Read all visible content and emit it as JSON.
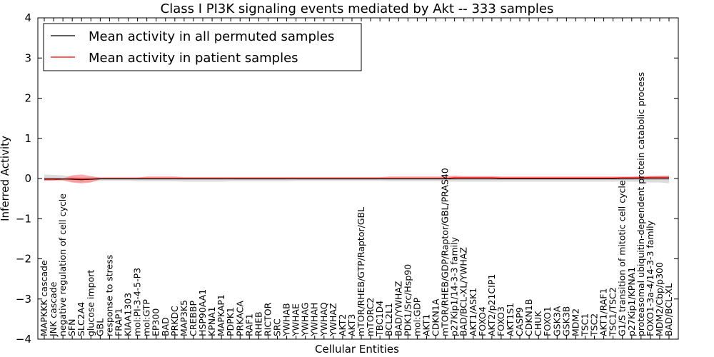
{
  "chart_data": {
    "type": "line",
    "title": "Class I PI3K signaling events mediated by Akt -- 333 samples",
    "xlabel": "Cellular Entities",
    "ylabel": "Inferred Activity",
    "ylim": [
      -4,
      4
    ],
    "yticks": [
      "−4",
      "−3",
      "−2",
      "−1",
      "0",
      "1",
      "2",
      "3",
      "4"
    ],
    "legend_position": "top-left",
    "colors": {
      "permuted": "#000000",
      "patient": "#ff0000",
      "band_permuted": "#bbbbbb",
      "band_patient": "#ff6666"
    },
    "categories": [
      "MAPKKK cascade",
      "JNK cascade",
      "negative regulation of cell cycle",
      "SFN",
      "SLC2A4",
      "glucose import",
      "GBL",
      "response to stress",
      "FRAP1",
      "KIAA1303",
      "mol:PI-3-4-5-P3",
      "mol:GTP",
      "EP300",
      "BAD",
      "PRKDC",
      "MAP3K5",
      "CREBBP",
      "HSP90AA1",
      "KPNA1",
      "MAPKAP1",
      "PDPK1",
      "PRKACA",
      "RAF1",
      "RHEB",
      "RICTOR",
      "SRC",
      "YWHAB",
      "YWHAE",
      "YWHAG",
      "YWHAH",
      "YWHAQ",
      "YWHAZ",
      "AKT2",
      "AKT3",
      "mTOR/RHEB/GTP/Raptor/GBL",
      "mTORC2",
      "TBC1D4",
      "BCL2L1",
      "BAD/YWHAZ",
      "PDK1/Src/Hsp90",
      "mol:GDP",
      "AKT1",
      "CDKN1A",
      "mTOR/RHEB/GDP/Raptor/GBL/PRAS40",
      "p27Kip1/14-3-3 family",
      "BAD/BCL-XL/YWHAZ",
      "AKT1/ASK1",
      "FOXO4",
      "AKT2/p21CIP1",
      "FOXO3",
      "AKT1S1",
      "CASP9",
      "CDKN1B",
      "CHUK",
      "FOXO1",
      "GSK3A",
      "GSK3B",
      "MDM2",
      "TSC1",
      "TSC2",
      "AKT1/RAF1",
      "TSC1/TSC2",
      "G1/S transition of mitotic cell cycle",
      "p27Kip1/KPNA1",
      "proteasomal ubiquitin-dependent protein catabolic process",
      "FOXO1-3a-4/14-3-3 family",
      "MDM2/Cbp/p300",
      "BAD/BCL-XL"
    ],
    "series": [
      {
        "name": "Mean activity in all permuted samples",
        "values": [
          0.0,
          0.0,
          -0.01,
          -0.02,
          -0.03,
          -0.02,
          -0.01,
          -0.01,
          -0.01,
          -0.01,
          -0.01,
          -0.01,
          -0.01,
          -0.01,
          -0.01,
          -0.01,
          -0.01,
          -0.01,
          -0.01,
          -0.01,
          -0.01,
          -0.01,
          -0.01,
          -0.01,
          -0.01,
          -0.01,
          -0.01,
          -0.01,
          -0.01,
          -0.01,
          -0.01,
          -0.01,
          -0.01,
          -0.01,
          -0.01,
          -0.01,
          -0.01,
          -0.01,
          -0.01,
          -0.01,
          -0.01,
          -0.01,
          -0.01,
          -0.01,
          -0.01,
          -0.01,
          -0.01,
          -0.01,
          -0.01,
          -0.01,
          -0.01,
          -0.01,
          -0.01,
          -0.01,
          -0.01,
          -0.01,
          -0.01,
          -0.01,
          -0.01,
          -0.01,
          -0.01,
          -0.01,
          -0.01,
          -0.01,
          -0.01,
          -0.01,
          -0.01,
          -0.01
        ],
        "lower": [
          -0.05,
          -0.04,
          -0.05,
          -0.08,
          -0.1,
          -0.08,
          -0.06,
          -0.06,
          -0.06,
          -0.06,
          -0.07,
          -0.07,
          -0.07,
          -0.07,
          -0.07,
          -0.08,
          -0.08,
          -0.08,
          -0.08,
          -0.08,
          -0.07,
          -0.07,
          -0.07,
          -0.07,
          -0.07,
          -0.07,
          -0.07,
          -0.06,
          -0.06,
          -0.06,
          -0.06,
          -0.06,
          -0.06,
          -0.06,
          -0.06,
          -0.06,
          -0.06,
          -0.07,
          -0.07,
          -0.07,
          -0.07,
          -0.07,
          -0.07,
          -0.07,
          -0.08,
          -0.08,
          -0.08,
          -0.08,
          -0.08,
          -0.08,
          -0.08,
          -0.08,
          -0.08,
          -0.08,
          -0.08,
          -0.08,
          -0.08,
          -0.08,
          -0.08,
          -0.08,
          -0.08,
          -0.08,
          -0.08,
          -0.08,
          -0.09,
          -0.1,
          -0.1,
          -0.12
        ],
        "upper": [
          0.1,
          0.09,
          0.08,
          0.05,
          0.03,
          0.04,
          0.04,
          0.04,
          0.04,
          0.04,
          0.04,
          0.04,
          0.04,
          0.04,
          0.04,
          0.04,
          0.04,
          0.04,
          0.04,
          0.04,
          0.04,
          0.04,
          0.04,
          0.04,
          0.04,
          0.04,
          0.04,
          0.04,
          0.04,
          0.04,
          0.04,
          0.04,
          0.04,
          0.04,
          0.04,
          0.04,
          0.04,
          0.04,
          0.04,
          0.04,
          0.04,
          0.04,
          0.04,
          0.04,
          0.04,
          0.04,
          0.04,
          0.04,
          0.04,
          0.04,
          0.04,
          0.04,
          0.04,
          0.04,
          0.04,
          0.04,
          0.04,
          0.04,
          0.04,
          0.04,
          0.04,
          0.04,
          0.04,
          0.04,
          0.05,
          0.06,
          0.07,
          0.08
        ]
      },
      {
        "name": "Mean activity in patient samples",
        "values": [
          -0.03,
          -0.03,
          -0.02,
          0.0,
          -0.01,
          -0.01,
          0.0,
          0.0,
          0.0,
          0.0,
          0.0,
          0.0,
          0.0,
          0.0,
          0.0,
          0.0,
          0.0,
          0.0,
          0.0,
          0.0,
          0.0,
          0.0,
          0.0,
          0.0,
          0.0,
          0.0,
          0.0,
          0.0,
          0.0,
          0.0,
          0.0,
          0.0,
          0.0,
          0.0,
          0.0,
          0.0,
          0.0,
          0.0,
          0.0,
          0.0,
          0.0,
          0.0,
          0.0,
          0.0,
          0.02,
          0.02,
          0.02,
          0.02,
          0.02,
          0.01,
          0.01,
          0.01,
          0.01,
          0.01,
          0.01,
          0.01,
          0.01,
          0.01,
          0.01,
          0.01,
          0.01,
          0.01,
          0.02,
          0.02,
          0.02,
          0.03,
          0.03,
          0.03
        ],
        "lower": [
          -0.05,
          -0.05,
          -0.05,
          -0.1,
          -0.12,
          -0.1,
          -0.02,
          -0.02,
          -0.02,
          -0.02,
          -0.02,
          -0.02,
          -0.02,
          -0.02,
          -0.02,
          -0.02,
          -0.02,
          -0.02,
          -0.02,
          -0.02,
          -0.02,
          -0.02,
          -0.02,
          -0.02,
          -0.02,
          -0.02,
          -0.02,
          -0.02,
          -0.02,
          -0.02,
          -0.02,
          -0.02,
          -0.02,
          -0.02,
          -0.02,
          -0.02,
          -0.02,
          -0.02,
          -0.02,
          -0.02,
          -0.02,
          -0.02,
          -0.02,
          -0.02,
          -0.01,
          -0.01,
          -0.01,
          -0.01,
          -0.01,
          -0.01,
          -0.01,
          -0.01,
          -0.01,
          -0.01,
          -0.01,
          -0.01,
          -0.01,
          -0.01,
          -0.01,
          -0.01,
          -0.01,
          -0.01,
          -0.01,
          -0.01,
          -0.01,
          -0.01,
          -0.01,
          -0.01
        ],
        "upper": [
          -0.01,
          -0.01,
          0.0,
          0.08,
          0.1,
          0.06,
          0.02,
          0.02,
          0.02,
          0.02,
          0.02,
          0.05,
          0.05,
          0.05,
          0.05,
          0.03,
          0.03,
          0.03,
          0.03,
          0.03,
          0.03,
          0.03,
          0.03,
          0.03,
          0.03,
          0.03,
          0.03,
          0.03,
          0.03,
          0.03,
          0.03,
          0.03,
          0.03,
          0.03,
          0.03,
          0.03,
          0.03,
          0.05,
          0.05,
          0.05,
          0.05,
          0.05,
          0.05,
          0.05,
          0.07,
          0.06,
          0.06,
          0.06,
          0.06,
          0.05,
          0.05,
          0.05,
          0.05,
          0.05,
          0.05,
          0.05,
          0.05,
          0.05,
          0.05,
          0.05,
          0.05,
          0.05,
          0.05,
          0.05,
          0.06,
          0.06,
          0.06,
          0.06
        ]
      }
    ]
  }
}
